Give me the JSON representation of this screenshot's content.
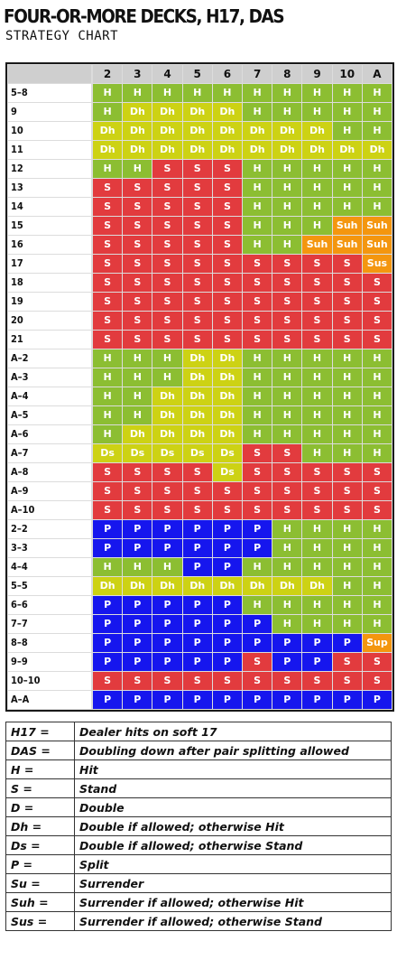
{
  "title": "FOUR-OR-MORE DECKS, H17, DAS",
  "subtitle": "STRATEGY CHART",
  "chart": {
    "dealer_cards": [
      "2",
      "3",
      "4",
      "5",
      "6",
      "7",
      "8",
      "9",
      "10",
      "A"
    ],
    "rows": [
      {
        "hand": "5–8",
        "actions": [
          "H",
          "H",
          "H",
          "H",
          "H",
          "H",
          "H",
          "H",
          "H",
          "H"
        ]
      },
      {
        "hand": "9",
        "actions": [
          "H",
          "Dh",
          "Dh",
          "Dh",
          "Dh",
          "H",
          "H",
          "H",
          "H",
          "H"
        ]
      },
      {
        "hand": "10",
        "actions": [
          "Dh",
          "Dh",
          "Dh",
          "Dh",
          "Dh",
          "Dh",
          "Dh",
          "Dh",
          "H",
          "H"
        ]
      },
      {
        "hand": "11",
        "actions": [
          "Dh",
          "Dh",
          "Dh",
          "Dh",
          "Dh",
          "Dh",
          "Dh",
          "Dh",
          "Dh",
          "Dh"
        ]
      },
      {
        "hand": "12",
        "actions": [
          "H",
          "H",
          "S",
          "S",
          "S",
          "H",
          "H",
          "H",
          "H",
          "H"
        ]
      },
      {
        "hand": "13",
        "actions": [
          "S",
          "S",
          "S",
          "S",
          "S",
          "H",
          "H",
          "H",
          "H",
          "H"
        ]
      },
      {
        "hand": "14",
        "actions": [
          "S",
          "S",
          "S",
          "S",
          "S",
          "H",
          "H",
          "H",
          "H",
          "H"
        ]
      },
      {
        "hand": "15",
        "actions": [
          "S",
          "S",
          "S",
          "S",
          "S",
          "H",
          "H",
          "H",
          "Suh",
          "Suh"
        ]
      },
      {
        "hand": "16",
        "actions": [
          "S",
          "S",
          "S",
          "S",
          "S",
          "H",
          "H",
          "Suh",
          "Suh",
          "Suh"
        ]
      },
      {
        "hand": "17",
        "actions": [
          "S",
          "S",
          "S",
          "S",
          "S",
          "S",
          "S",
          "S",
          "S",
          "Sus"
        ]
      },
      {
        "hand": "18",
        "actions": [
          "S",
          "S",
          "S",
          "S",
          "S",
          "S",
          "S",
          "S",
          "S",
          "S"
        ]
      },
      {
        "hand": "19",
        "actions": [
          "S",
          "S",
          "S",
          "S",
          "S",
          "S",
          "S",
          "S",
          "S",
          "S"
        ]
      },
      {
        "hand": "20",
        "actions": [
          "S",
          "S",
          "S",
          "S",
          "S",
          "S",
          "S",
          "S",
          "S",
          "S"
        ]
      },
      {
        "hand": "21",
        "actions": [
          "S",
          "S",
          "S",
          "S",
          "S",
          "S",
          "S",
          "S",
          "S",
          "S"
        ]
      },
      {
        "hand": "A–2",
        "actions": [
          "H",
          "H",
          "H",
          "Dh",
          "Dh",
          "H",
          "H",
          "H",
          "H",
          "H"
        ]
      },
      {
        "hand": "A–3",
        "actions": [
          "H",
          "H",
          "H",
          "Dh",
          "Dh",
          "H",
          "H",
          "H",
          "H",
          "H"
        ]
      },
      {
        "hand": "A–4",
        "actions": [
          "H",
          "H",
          "Dh",
          "Dh",
          "Dh",
          "H",
          "H",
          "H",
          "H",
          "H"
        ]
      },
      {
        "hand": "A–5",
        "actions": [
          "H",
          "H",
          "Dh",
          "Dh",
          "Dh",
          "H",
          "H",
          "H",
          "H",
          "H"
        ]
      },
      {
        "hand": "A–6",
        "actions": [
          "H",
          "Dh",
          "Dh",
          "Dh",
          "Dh",
          "H",
          "H",
          "H",
          "H",
          "H"
        ]
      },
      {
        "hand": "A–7",
        "actions": [
          "Ds",
          "Ds",
          "Ds",
          "Ds",
          "Ds",
          "S",
          "S",
          "H",
          "H",
          "H"
        ]
      },
      {
        "hand": "A–8",
        "actions": [
          "S",
          "S",
          "S",
          "S",
          "Ds",
          "S",
          "S",
          "S",
          "S",
          "S"
        ]
      },
      {
        "hand": "A–9",
        "actions": [
          "S",
          "S",
          "S",
          "S",
          "S",
          "S",
          "S",
          "S",
          "S",
          "S"
        ]
      },
      {
        "hand": "A–10",
        "actions": [
          "S",
          "S",
          "S",
          "S",
          "S",
          "S",
          "S",
          "S",
          "S",
          "S"
        ]
      },
      {
        "hand": "2–2",
        "actions": [
          "P",
          "P",
          "P",
          "P",
          "P",
          "P",
          "H",
          "H",
          "H",
          "H"
        ]
      },
      {
        "hand": "3–3",
        "actions": [
          "P",
          "P",
          "P",
          "P",
          "P",
          "P",
          "H",
          "H",
          "H",
          "H"
        ]
      },
      {
        "hand": "4–4",
        "actions": [
          "H",
          "H",
          "H",
          "P",
          "P",
          "H",
          "H",
          "H",
          "H",
          "H"
        ]
      },
      {
        "hand": "5–5",
        "actions": [
          "Dh",
          "Dh",
          "Dh",
          "Dh",
          "Dh",
          "Dh",
          "Dh",
          "Dh",
          "H",
          "H"
        ]
      },
      {
        "hand": "6–6",
        "actions": [
          "P",
          "P",
          "P",
          "P",
          "P",
          "H",
          "H",
          "H",
          "H",
          "H"
        ]
      },
      {
        "hand": "7–7",
        "actions": [
          "P",
          "P",
          "P",
          "P",
          "P",
          "P",
          "H",
          "H",
          "H",
          "H"
        ]
      },
      {
        "hand": "8–8",
        "actions": [
          "P",
          "P",
          "P",
          "P",
          "P",
          "P",
          "P",
          "P",
          "P",
          "Sup"
        ]
      },
      {
        "hand": "9–9",
        "actions": [
          "P",
          "P",
          "P",
          "P",
          "P",
          "S",
          "P",
          "P",
          "S",
          "S"
        ]
      },
      {
        "hand": "10–10",
        "actions": [
          "S",
          "S",
          "S",
          "S",
          "S",
          "S",
          "S",
          "S",
          "S",
          "S"
        ]
      },
      {
        "hand": "A–A",
        "actions": [
          "P",
          "P",
          "P",
          "P",
          "P",
          "P",
          "P",
          "P",
          "P",
          "P"
        ]
      }
    ]
  },
  "legend": [
    {
      "key": "H17 =",
      "value": "Dealer hits on soft 17"
    },
    {
      "key": "DAS =",
      "value": "Doubling down after pair splitting allowed"
    },
    {
      "key": "H =",
      "value": "Hit"
    },
    {
      "key": "S =",
      "value": "Stand"
    },
    {
      "key": "D =",
      "value": "Double"
    },
    {
      "key": "Dh =",
      "value": "Double if allowed; otherwise Hit"
    },
    {
      "key": "Ds =",
      "value": "Double if allowed; otherwise Stand"
    },
    {
      "key": "P =",
      "value": "Split"
    },
    {
      "key": "Su =",
      "value": "Surrender"
    },
    {
      "key": "Suh =",
      "value": "Surrender if allowed; otherwise Hit"
    },
    {
      "key": "Sus =",
      "value": "Surrender if allowed; otherwise Stand"
    }
  ],
  "colors": {
    "H": "#8cbe32",
    "S": "#e23b3e",
    "P": "#1616ee",
    "Dh": "#cdd214",
    "Ds": "#cdd214",
    "Suh": "#f4960f",
    "Sus": "#f4960f",
    "Sup": "#f4960f"
  }
}
